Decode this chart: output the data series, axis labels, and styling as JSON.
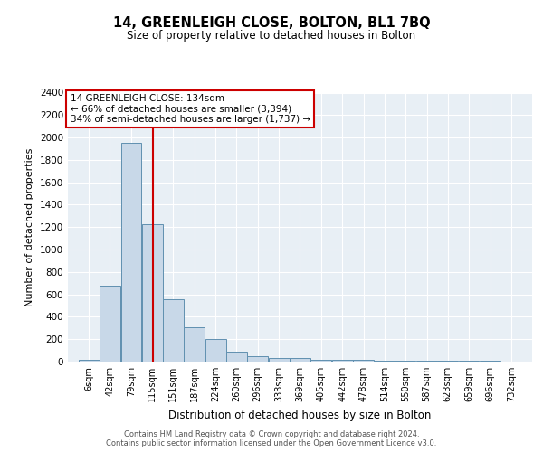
{
  "title": "14, GREENLEIGH CLOSE, BOLTON, BL1 7BQ",
  "subtitle": "Size of property relative to detached houses in Bolton",
  "xlabel": "Distribution of detached houses by size in Bolton",
  "ylabel": "Number of detached properties",
  "annotation_line1": "14 GREENLEIGH CLOSE: 134sqm",
  "annotation_line2": "← 66% of detached houses are smaller (3,394)",
  "annotation_line3": "34% of semi-detached houses are larger (1,737) →",
  "vline_x": 134,
  "categories": [
    "6sqm",
    "42sqm",
    "79sqm",
    "115sqm",
    "151sqm",
    "187sqm",
    "224sqm",
    "260sqm",
    "296sqm",
    "333sqm",
    "369sqm",
    "405sqm",
    "442sqm",
    "478sqm",
    "514sqm",
    "550sqm",
    "587sqm",
    "623sqm",
    "659sqm",
    "696sqm",
    "732sqm"
  ],
  "bin_edges": [
    6,
    42,
    79,
    115,
    151,
    187,
    224,
    260,
    296,
    333,
    369,
    405,
    442,
    478,
    514,
    550,
    587,
    623,
    659,
    696,
    732
  ],
  "values": [
    20,
    680,
    1950,
    1230,
    560,
    305,
    200,
    85,
    45,
    35,
    30,
    20,
    20,
    15,
    10,
    8,
    5,
    5,
    5,
    10
  ],
  "bar_color": "#c8d8e8",
  "bar_edge_color": "#6090b0",
  "vline_color": "#cc0000",
  "background_color": "#e8eff5",
  "grid_color": "#ffffff",
  "footer": "Contains HM Land Registry data © Crown copyright and database right 2024.\nContains public sector information licensed under the Open Government Licence v3.0.",
  "ylim": [
    0,
    2400
  ],
  "yticks": [
    0,
    200,
    400,
    600,
    800,
    1000,
    1200,
    1400,
    1600,
    1800,
    2000,
    2200,
    2400
  ]
}
